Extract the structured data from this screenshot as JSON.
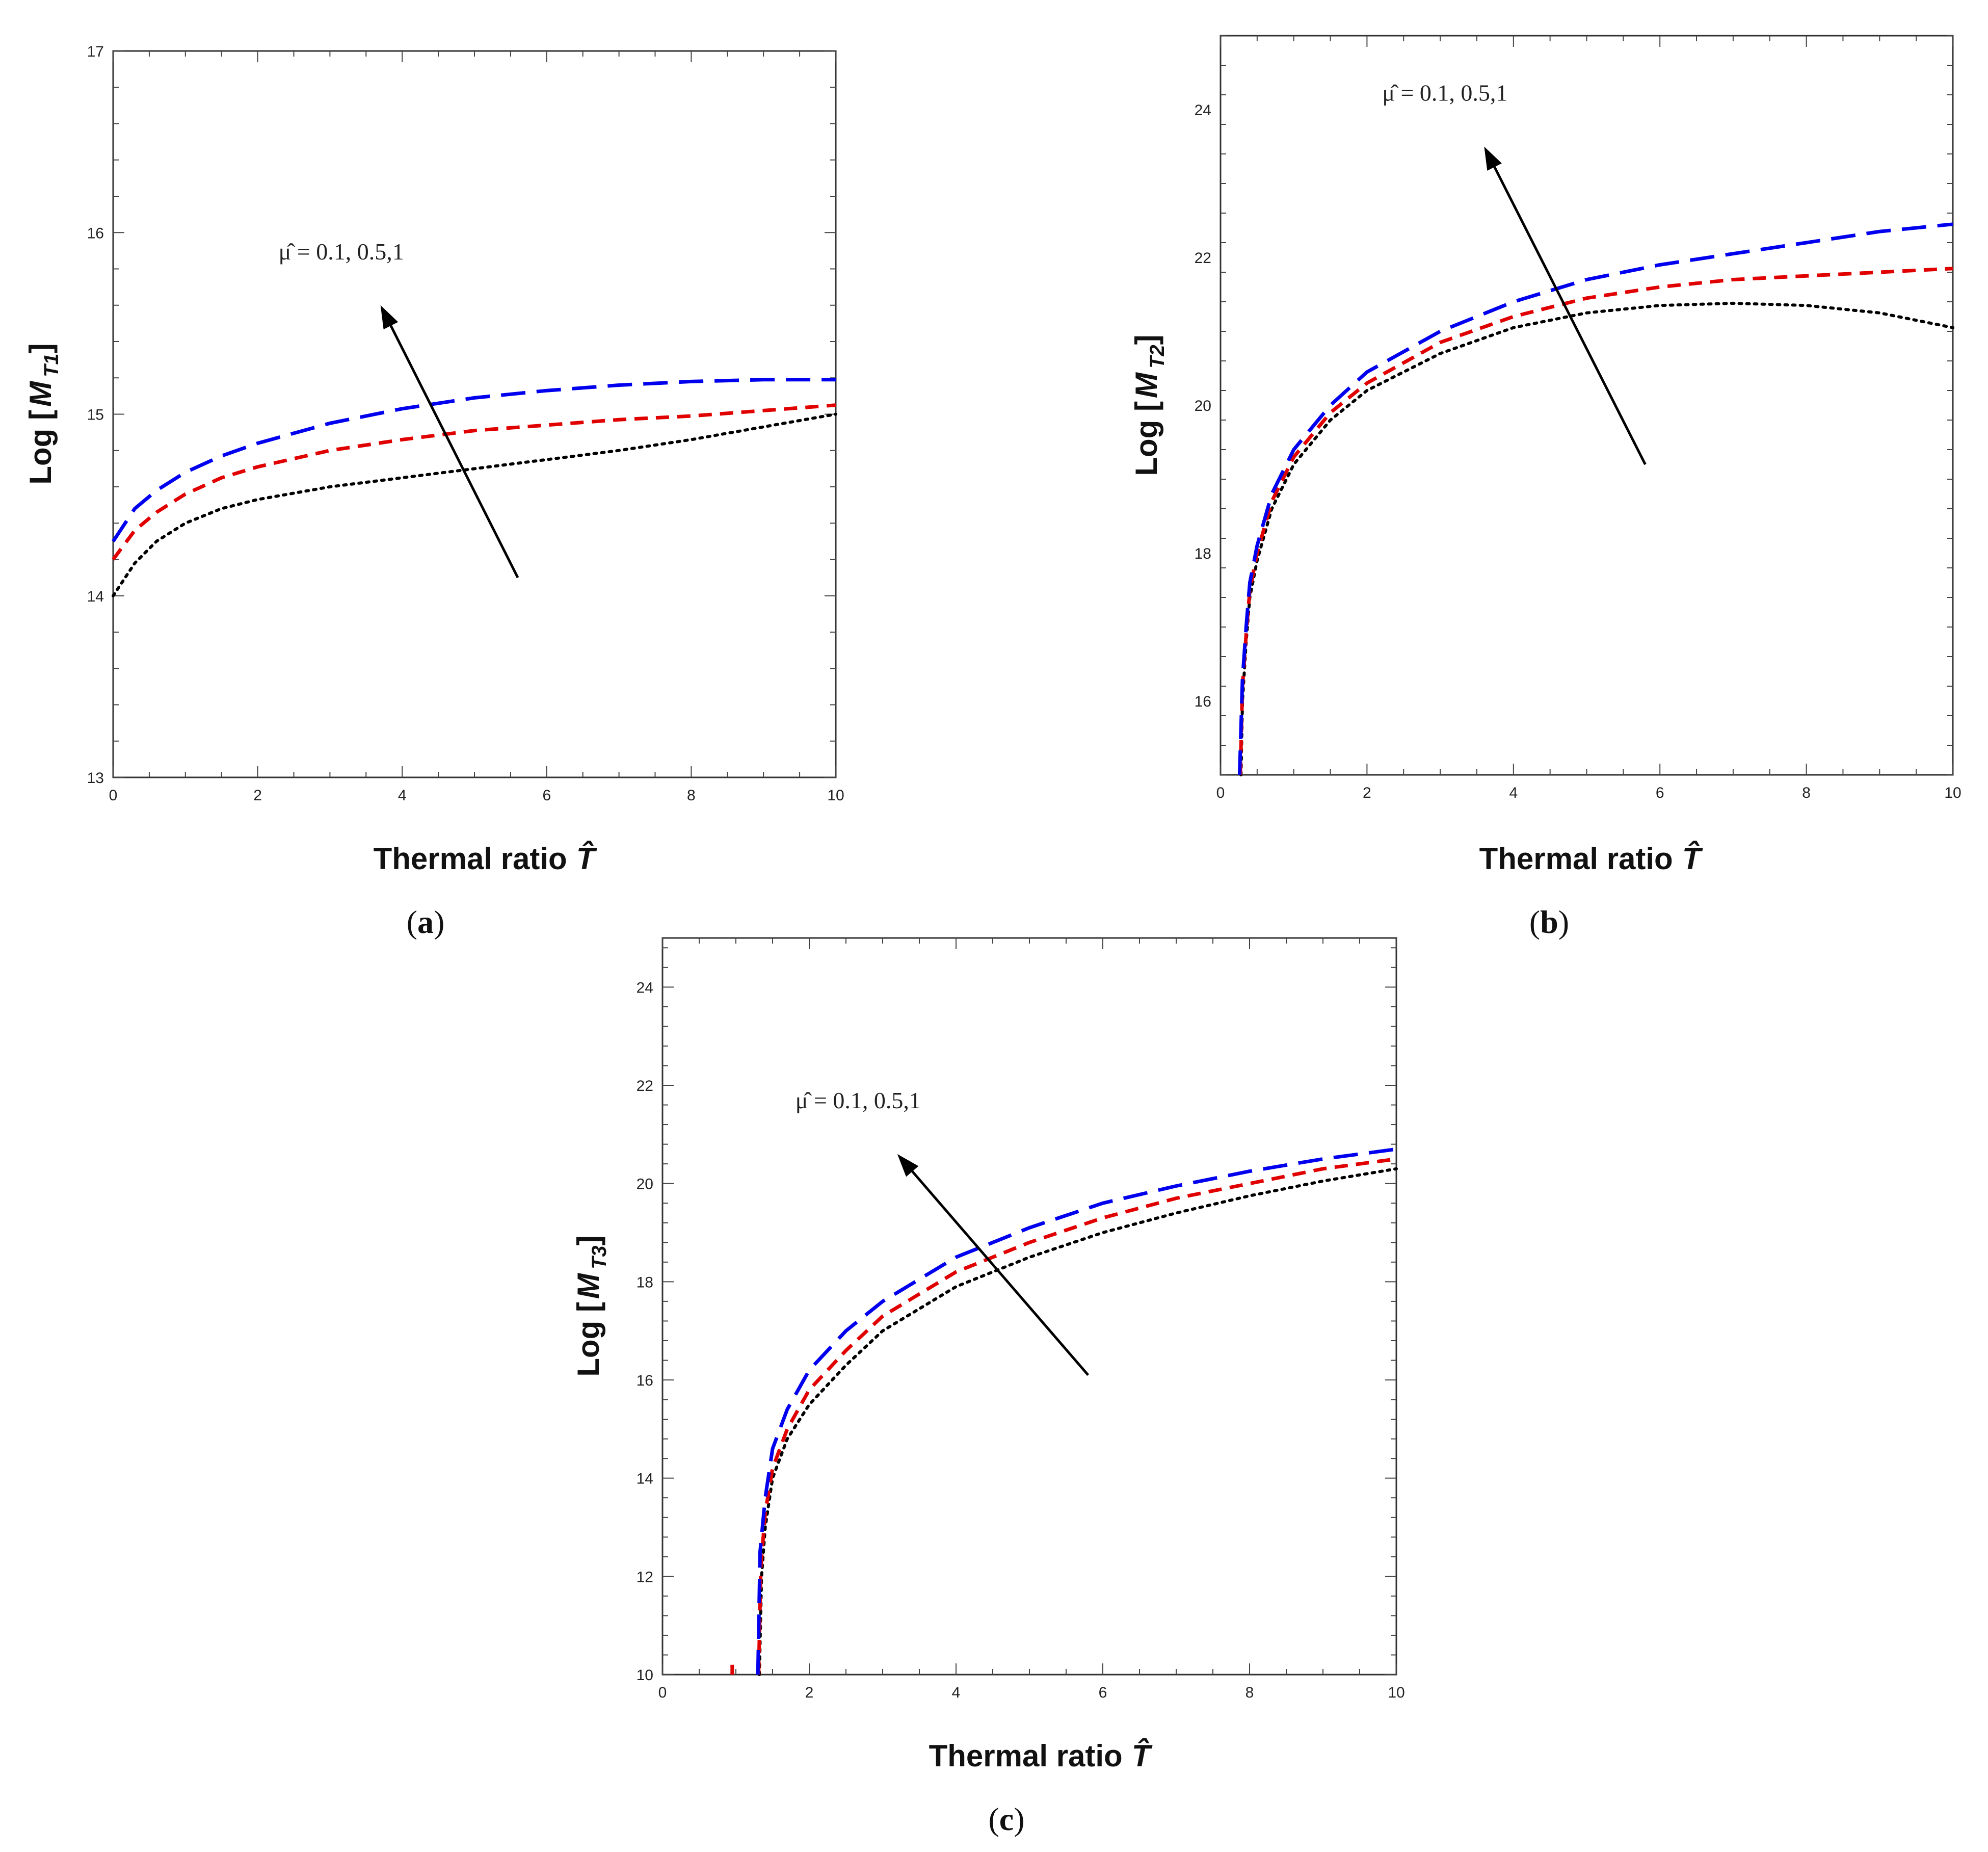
{
  "figure": {
    "domain": "Chart",
    "x_axis_title": "Thermal ratio T̂"
  },
  "chart_data": [
    {
      "id": "a",
      "type": "line",
      "caption": "(a)",
      "caption_letter": "a",
      "xlabel": "Thermal ratio T̂",
      "xlabel_text": "Thermal ratio",
      "xlabel_symbol": "T̂",
      "ylabel": "Log [M T1]",
      "ylabel_main": "Log [",
      "ylabel_M": "M",
      "ylabel_sub": "T1",
      "ylabel_end": "]",
      "xlim": [
        0,
        10
      ],
      "ylim": [
        13,
        17
      ],
      "xticks": [
        0,
        2,
        4,
        6,
        8,
        10
      ],
      "yticks": [
        13,
        14,
        15,
        16,
        17
      ],
      "annotation": "μ̂ = 0.1, 0.5,1",
      "arrow": {
        "from": [
          5.6,
          14.1
        ],
        "to": [
          3.7,
          15.6
        ]
      },
      "series": [
        {
          "name": "μ̂ = 0.1",
          "color": "#000000",
          "style": "dotted",
          "x": [
            0,
            0.3,
            0.6,
            1,
            1.5,
            2,
            3,
            4,
            5,
            6,
            7,
            8,
            9,
            10
          ],
          "y": [
            14.0,
            14.18,
            14.3,
            14.4,
            14.48,
            14.53,
            14.6,
            14.65,
            14.7,
            14.75,
            14.8,
            14.86,
            14.93,
            15.0
          ]
        },
        {
          "name": "μ̂ = 0.5",
          "color": "#e00000",
          "style": "dashed",
          "x": [
            0,
            0.3,
            0.6,
            1,
            1.5,
            2,
            3,
            4,
            5,
            6,
            7,
            8,
            9,
            10
          ],
          "y": [
            14.2,
            14.36,
            14.46,
            14.56,
            14.65,
            14.71,
            14.8,
            14.86,
            14.91,
            14.94,
            14.97,
            14.99,
            15.02,
            15.05
          ]
        },
        {
          "name": "μ̂ = 1",
          "color": "#0000ee",
          "style": "longdash",
          "x": [
            0,
            0.3,
            0.6,
            1,
            1.5,
            2,
            3,
            4,
            5,
            6,
            7,
            8,
            9,
            10
          ],
          "y": [
            14.3,
            14.48,
            14.58,
            14.68,
            14.77,
            14.84,
            14.95,
            15.03,
            15.09,
            15.13,
            15.16,
            15.18,
            15.19,
            15.19
          ]
        }
      ]
    },
    {
      "id": "b",
      "type": "line",
      "caption": "(b)",
      "caption_letter": "b",
      "xlabel": "Thermal ratio T̂",
      "xlabel_text": "Thermal ratio",
      "xlabel_symbol": "T̂",
      "ylabel": "Log [M T2]",
      "ylabel_main": "Log [",
      "ylabel_M": "M",
      "ylabel_sub": "T2",
      "ylabel_end": "]",
      "xlim": [
        0,
        10
      ],
      "ylim": [
        15,
        25
      ],
      "xticks": [
        0,
        2,
        4,
        6,
        8,
        10
      ],
      "yticks": [
        16,
        18,
        20,
        22,
        24
      ],
      "annotation": "μ̂ = 0.1, 0.5,1",
      "arrow": {
        "from": [
          5.8,
          19.2
        ],
        "to": [
          3.6,
          23.5
        ]
      },
      "series": [
        {
          "name": "μ̂ = 0.1",
          "color": "#000000",
          "style": "dotted",
          "x": [
            0.28,
            0.3,
            0.35,
            0.4,
            0.5,
            0.7,
            1,
            1.5,
            2,
            3,
            4,
            5,
            6,
            7,
            8,
            9,
            10
          ],
          "y": [
            15.0,
            16.0,
            16.8,
            17.4,
            17.9,
            18.6,
            19.2,
            19.8,
            20.2,
            20.7,
            21.05,
            21.25,
            21.35,
            21.38,
            21.35,
            21.25,
            21.05
          ]
        },
        {
          "name": "μ̂ = 0.5",
          "color": "#e00000",
          "style": "dashed",
          "x": [
            0.27,
            0.3,
            0.35,
            0.4,
            0.5,
            0.7,
            1,
            1.5,
            2,
            3,
            4,
            5,
            6,
            7,
            8,
            9,
            10
          ],
          "y": [
            15.0,
            16.2,
            16.9,
            17.5,
            18.0,
            18.7,
            19.3,
            19.9,
            20.3,
            20.85,
            21.2,
            21.45,
            21.6,
            21.7,
            21.75,
            21.8,
            21.85
          ]
        },
        {
          "name": "μ̂ = 1",
          "color": "#0000ee",
          "style": "longdash",
          "x": [
            0.26,
            0.3,
            0.35,
            0.4,
            0.5,
            0.7,
            1,
            1.5,
            2,
            3,
            4,
            5,
            6,
            7,
            8,
            9,
            10
          ],
          "y": [
            15.0,
            16.3,
            17.0,
            17.6,
            18.1,
            18.8,
            19.4,
            20.0,
            20.45,
            21.0,
            21.4,
            21.7,
            21.9,
            22.05,
            22.2,
            22.35,
            22.45
          ]
        }
      ]
    },
    {
      "id": "c",
      "type": "line",
      "caption": "(c)",
      "caption_letter": "c",
      "xlabel": "Thermal ratio T̂",
      "xlabel_text": "Thermal ratio",
      "xlabel_symbol": "T̂",
      "ylabel": "Log [M T3]",
      "ylabel_main": "Log [",
      "ylabel_M": "M",
      "ylabel_sub": "T3",
      "ylabel_end": "]",
      "xlim": [
        0,
        10
      ],
      "ylim": [
        10,
        25
      ],
      "xticks": [
        0,
        2,
        4,
        6,
        8,
        10
      ],
      "yticks": [
        10,
        12,
        14,
        16,
        18,
        20,
        22,
        24
      ],
      "annotation": "μ̂ = 0.1, 0.5,1",
      "arrow": {
        "from": [
          5.8,
          16.1
        ],
        "to": [
          3.2,
          20.6
        ]
      },
      "series": [
        {
          "name": "μ̂ = 0.1",
          "color": "#000000",
          "style": "dotted",
          "x": [
            1.32,
            1.35,
            1.4,
            1.5,
            1.7,
            2,
            2.5,
            3,
            4,
            5,
            6,
            7,
            8,
            9,
            10
          ],
          "y": [
            10.0,
            12.0,
            13.0,
            14.0,
            14.8,
            15.5,
            16.3,
            17.0,
            17.9,
            18.5,
            19.0,
            19.4,
            19.75,
            20.05,
            20.3
          ]
        },
        {
          "name": "μ̂ = 0.5",
          "color": "#e00000",
          "style": "dashed",
          "x": [
            1.31,
            1.34,
            1.4,
            1.5,
            1.7,
            2,
            2.5,
            3,
            4,
            5,
            6,
            7,
            8,
            9,
            10
          ],
          "y": [
            10.0,
            12.2,
            13.3,
            14.2,
            15.0,
            15.8,
            16.6,
            17.3,
            18.2,
            18.8,
            19.3,
            19.7,
            20.0,
            20.3,
            20.5
          ]
        },
        {
          "name": "μ̂ = 1",
          "color": "#0000ee",
          "style": "longdash",
          "x": [
            1.3,
            1.33,
            1.4,
            1.5,
            1.7,
            2,
            2.5,
            3,
            4,
            5,
            6,
            7,
            8,
            9,
            10
          ],
          "y": [
            10.0,
            12.5,
            13.6,
            14.6,
            15.4,
            16.2,
            17.0,
            17.6,
            18.5,
            19.1,
            19.6,
            19.95,
            20.25,
            20.5,
            20.7
          ]
        }
      ],
      "extra_marks": [
        {
          "name": "red-spike",
          "color": "#e00000",
          "x": [
            0.95,
            0.95
          ],
          "y": [
            10.0,
            10.2
          ]
        }
      ]
    }
  ]
}
